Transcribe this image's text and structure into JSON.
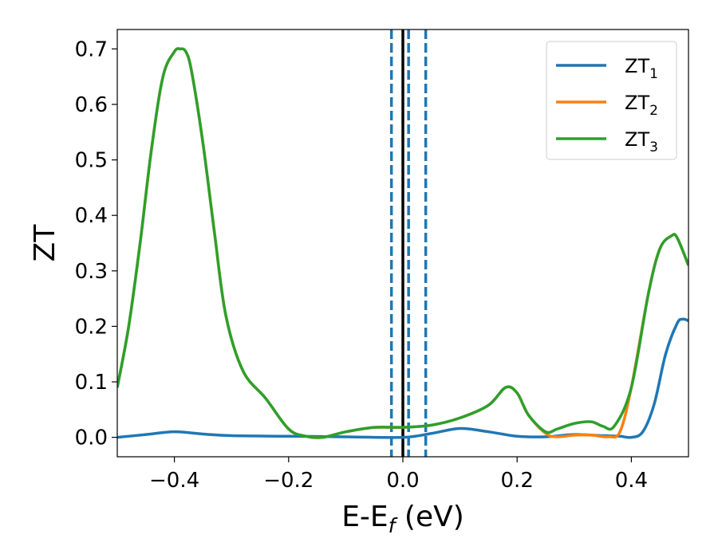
{
  "chart_data": {
    "type": "line",
    "xlabel_main": "E-E",
    "xlabel_sub": "f",
    "xlabel_unit": " (eV)",
    "ylabel": "ZT",
    "xlim": [
      -0.5,
      0.5
    ],
    "ylim": [
      -0.035,
      0.735
    ],
    "x_ticks": [
      -0.4,
      -0.2,
      0.0,
      0.2,
      0.4
    ],
    "x_tick_labels": [
      "−0.4",
      "−0.2",
      "0.0",
      "0.2",
      "0.4"
    ],
    "y_ticks": [
      0.0,
      0.1,
      0.2,
      0.3,
      0.4,
      0.5,
      0.6,
      0.7
    ],
    "y_tick_labels": [
      "0.0",
      "0.1",
      "0.2",
      "0.3",
      "0.4",
      "0.5",
      "0.6",
      "0.7"
    ],
    "grid": false,
    "legend_placement": "top-right",
    "vlines": [
      {
        "x": 0.0,
        "style": "solid",
        "color": "#000000"
      },
      {
        "x": -0.02,
        "style": "dashed",
        "color": "#1f77b4"
      },
      {
        "x": 0.01,
        "style": "dashed",
        "color": "#1f77b4"
      },
      {
        "x": 0.04,
        "style": "dashed",
        "color": "#1f77b4"
      }
    ],
    "series": [
      {
        "name": "ZT",
        "sub": "1",
        "color": "#1f77b4",
        "points": [
          [
            -0.5,
            0.0
          ],
          [
            -0.45,
            0.005
          ],
          [
            -0.4,
            0.01
          ],
          [
            -0.35,
            0.006
          ],
          [
            -0.3,
            0.003
          ],
          [
            -0.2,
            0.002
          ],
          [
            -0.1,
            0.001
          ],
          [
            0.0,
            0.0
          ],
          [
            0.05,
            0.007
          ],
          [
            0.1,
            0.016
          ],
          [
            0.15,
            0.01
          ],
          [
            0.2,
            0.002
          ],
          [
            0.25,
            0.001
          ],
          [
            0.3,
            0.005
          ],
          [
            0.35,
            0.003
          ],
          [
            0.38,
            0.002
          ],
          [
            0.4,
            0.0
          ],
          [
            0.42,
            0.01
          ],
          [
            0.44,
            0.06
          ],
          [
            0.46,
            0.15
          ],
          [
            0.48,
            0.205
          ],
          [
            0.49,
            0.213
          ],
          [
            0.5,
            0.21
          ]
        ]
      },
      {
        "name": "ZT",
        "sub": "2",
        "color": "#ff7f0e",
        "points": [
          [
            -0.5,
            0.09
          ],
          [
            -0.48,
            0.2
          ],
          [
            -0.46,
            0.35
          ],
          [
            -0.44,
            0.52
          ],
          [
            -0.42,
            0.65
          ],
          [
            -0.4,
            0.695
          ],
          [
            -0.39,
            0.7
          ],
          [
            -0.38,
            0.695
          ],
          [
            -0.37,
            0.66
          ],
          [
            -0.35,
            0.53
          ],
          [
            -0.33,
            0.37
          ],
          [
            -0.31,
            0.22
          ],
          [
            -0.28,
            0.12
          ],
          [
            -0.24,
            0.07
          ],
          [
            -0.2,
            0.015
          ],
          [
            -0.17,
            0.002
          ],
          [
            -0.14,
            0.0
          ],
          [
            -0.1,
            0.01
          ],
          [
            -0.05,
            0.018
          ],
          [
            0.0,
            0.018
          ],
          [
            0.05,
            0.022
          ],
          [
            0.1,
            0.035
          ],
          [
            0.15,
            0.058
          ],
          [
            0.18,
            0.09
          ],
          [
            0.2,
            0.08
          ],
          [
            0.22,
            0.04
          ],
          [
            0.25,
            0.007
          ],
          [
            0.27,
            0.001
          ],
          [
            0.3,
            0.004
          ],
          [
            0.33,
            0.004
          ],
          [
            0.36,
            0.001
          ],
          [
            0.38,
            0.01
          ],
          [
            0.4,
            0.09
          ],
          [
            0.43,
            0.26
          ],
          [
            0.45,
            0.34
          ],
          [
            0.47,
            0.363
          ],
          [
            0.48,
            0.36
          ],
          [
            0.5,
            0.31
          ]
        ]
      },
      {
        "name": "ZT",
        "sub": "3",
        "color": "#2ca02c",
        "points": [
          [
            -0.5,
            0.09
          ],
          [
            -0.48,
            0.2
          ],
          [
            -0.46,
            0.35
          ],
          [
            -0.44,
            0.52
          ],
          [
            -0.42,
            0.65
          ],
          [
            -0.4,
            0.695
          ],
          [
            -0.39,
            0.7
          ],
          [
            -0.38,
            0.695
          ],
          [
            -0.37,
            0.66
          ],
          [
            -0.35,
            0.53
          ],
          [
            -0.33,
            0.37
          ],
          [
            -0.31,
            0.22
          ],
          [
            -0.28,
            0.12
          ],
          [
            -0.24,
            0.07
          ],
          [
            -0.2,
            0.015
          ],
          [
            -0.17,
            0.002
          ],
          [
            -0.14,
            0.0
          ],
          [
            -0.1,
            0.01
          ],
          [
            -0.05,
            0.018
          ],
          [
            0.0,
            0.018
          ],
          [
            0.05,
            0.022
          ],
          [
            0.1,
            0.035
          ],
          [
            0.15,
            0.058
          ],
          [
            0.18,
            0.09
          ],
          [
            0.2,
            0.08
          ],
          [
            0.22,
            0.04
          ],
          [
            0.25,
            0.01
          ],
          [
            0.27,
            0.015
          ],
          [
            0.3,
            0.025
          ],
          [
            0.33,
            0.028
          ],
          [
            0.35,
            0.02
          ],
          [
            0.37,
            0.02
          ],
          [
            0.4,
            0.09
          ],
          [
            0.43,
            0.26
          ],
          [
            0.45,
            0.34
          ],
          [
            0.47,
            0.363
          ],
          [
            0.48,
            0.36
          ],
          [
            0.5,
            0.31
          ]
        ]
      }
    ]
  }
}
